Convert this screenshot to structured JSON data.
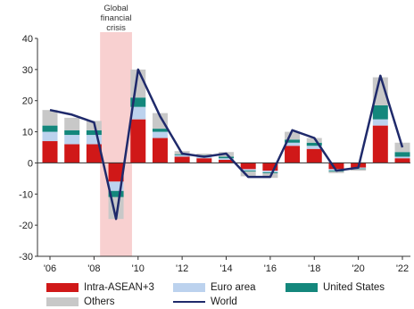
{
  "chart_data": {
    "type": "bar",
    "stacked": true,
    "ylim": [
      -30,
      40
    ],
    "yticks": [
      -30,
      -20,
      -10,
      0,
      10,
      20,
      30,
      40
    ],
    "years": [
      2006,
      2007,
      2008,
      2009,
      2010,
      2011,
      2012,
      2013,
      2014,
      2015,
      2016,
      2017,
      2018,
      2019,
      2020,
      2021,
      2022
    ],
    "xtick_labels": [
      "'06",
      "'08",
      "'10",
      "'12",
      "'14",
      "'16",
      "'18",
      "'20",
      "'22"
    ],
    "xtick_years": [
      2006,
      2008,
      2010,
      2012,
      2014,
      2016,
      2018,
      2020,
      2022
    ],
    "annotation": {
      "text": [
        "Global",
        "financial",
        "crisis"
      ],
      "from_year": 2008.6,
      "to_year": 2009.4,
      "color": "#f8d0d0"
    },
    "series": [
      {
        "name": "Intra-ASEAN+3",
        "color": "#d01818",
        "kind": "bar",
        "values": [
          7,
          6,
          6,
          -6,
          14,
          8,
          2,
          1.5,
          1,
          -2,
          -2.5,
          5.5,
          4.5,
          -2,
          -1.5,
          12,
          1.5
        ]
      },
      {
        "name": "Euro area",
        "color": "#bcd2ee",
        "kind": "bar",
        "values": [
          3,
          3,
          3,
          -3,
          4,
          2,
          0.5,
          0.5,
          0.5,
          -0.5,
          -0.5,
          1,
          1,
          -0.5,
          -0.3,
          2,
          0.5
        ]
      },
      {
        "name": "United States",
        "color": "#14877c",
        "kind": "bar",
        "values": [
          2,
          1.5,
          1.5,
          -2,
          3,
          1,
          0.3,
          0.5,
          0.5,
          -0.3,
          -0.3,
          1,
          1,
          -0.3,
          -0.2,
          4.5,
          1.5
        ]
      },
      {
        "name": "Others",
        "color": "#c8c8c8",
        "kind": "bar",
        "values": [
          5,
          4,
          3,
          -7,
          9,
          5,
          1,
          0.5,
          1.5,
          -1.5,
          -1.5,
          2.5,
          1.5,
          -0.5,
          -0.5,
          9,
          3
        ]
      },
      {
        "name": "World",
        "color": "#1f2a6b",
        "kind": "line",
        "values": [
          17,
          15.5,
          13,
          -18,
          30,
          15,
          3,
          2,
          3,
          -4.5,
          -4.5,
          10.5,
          8,
          -2.5,
          -1.5,
          28,
          5
        ]
      }
    ],
    "legend": [
      {
        "name": "Intra-ASEAN+3",
        "kind": "bar",
        "color": "#d01818"
      },
      {
        "name": "Euro area",
        "kind": "bar",
        "color": "#bcd2ee"
      },
      {
        "name": "United States",
        "kind": "bar",
        "color": "#14877c"
      },
      {
        "name": "Others",
        "kind": "bar",
        "color": "#c8c8c8"
      },
      {
        "name": "World",
        "kind": "line",
        "color": "#1f2a6b"
      }
    ]
  }
}
